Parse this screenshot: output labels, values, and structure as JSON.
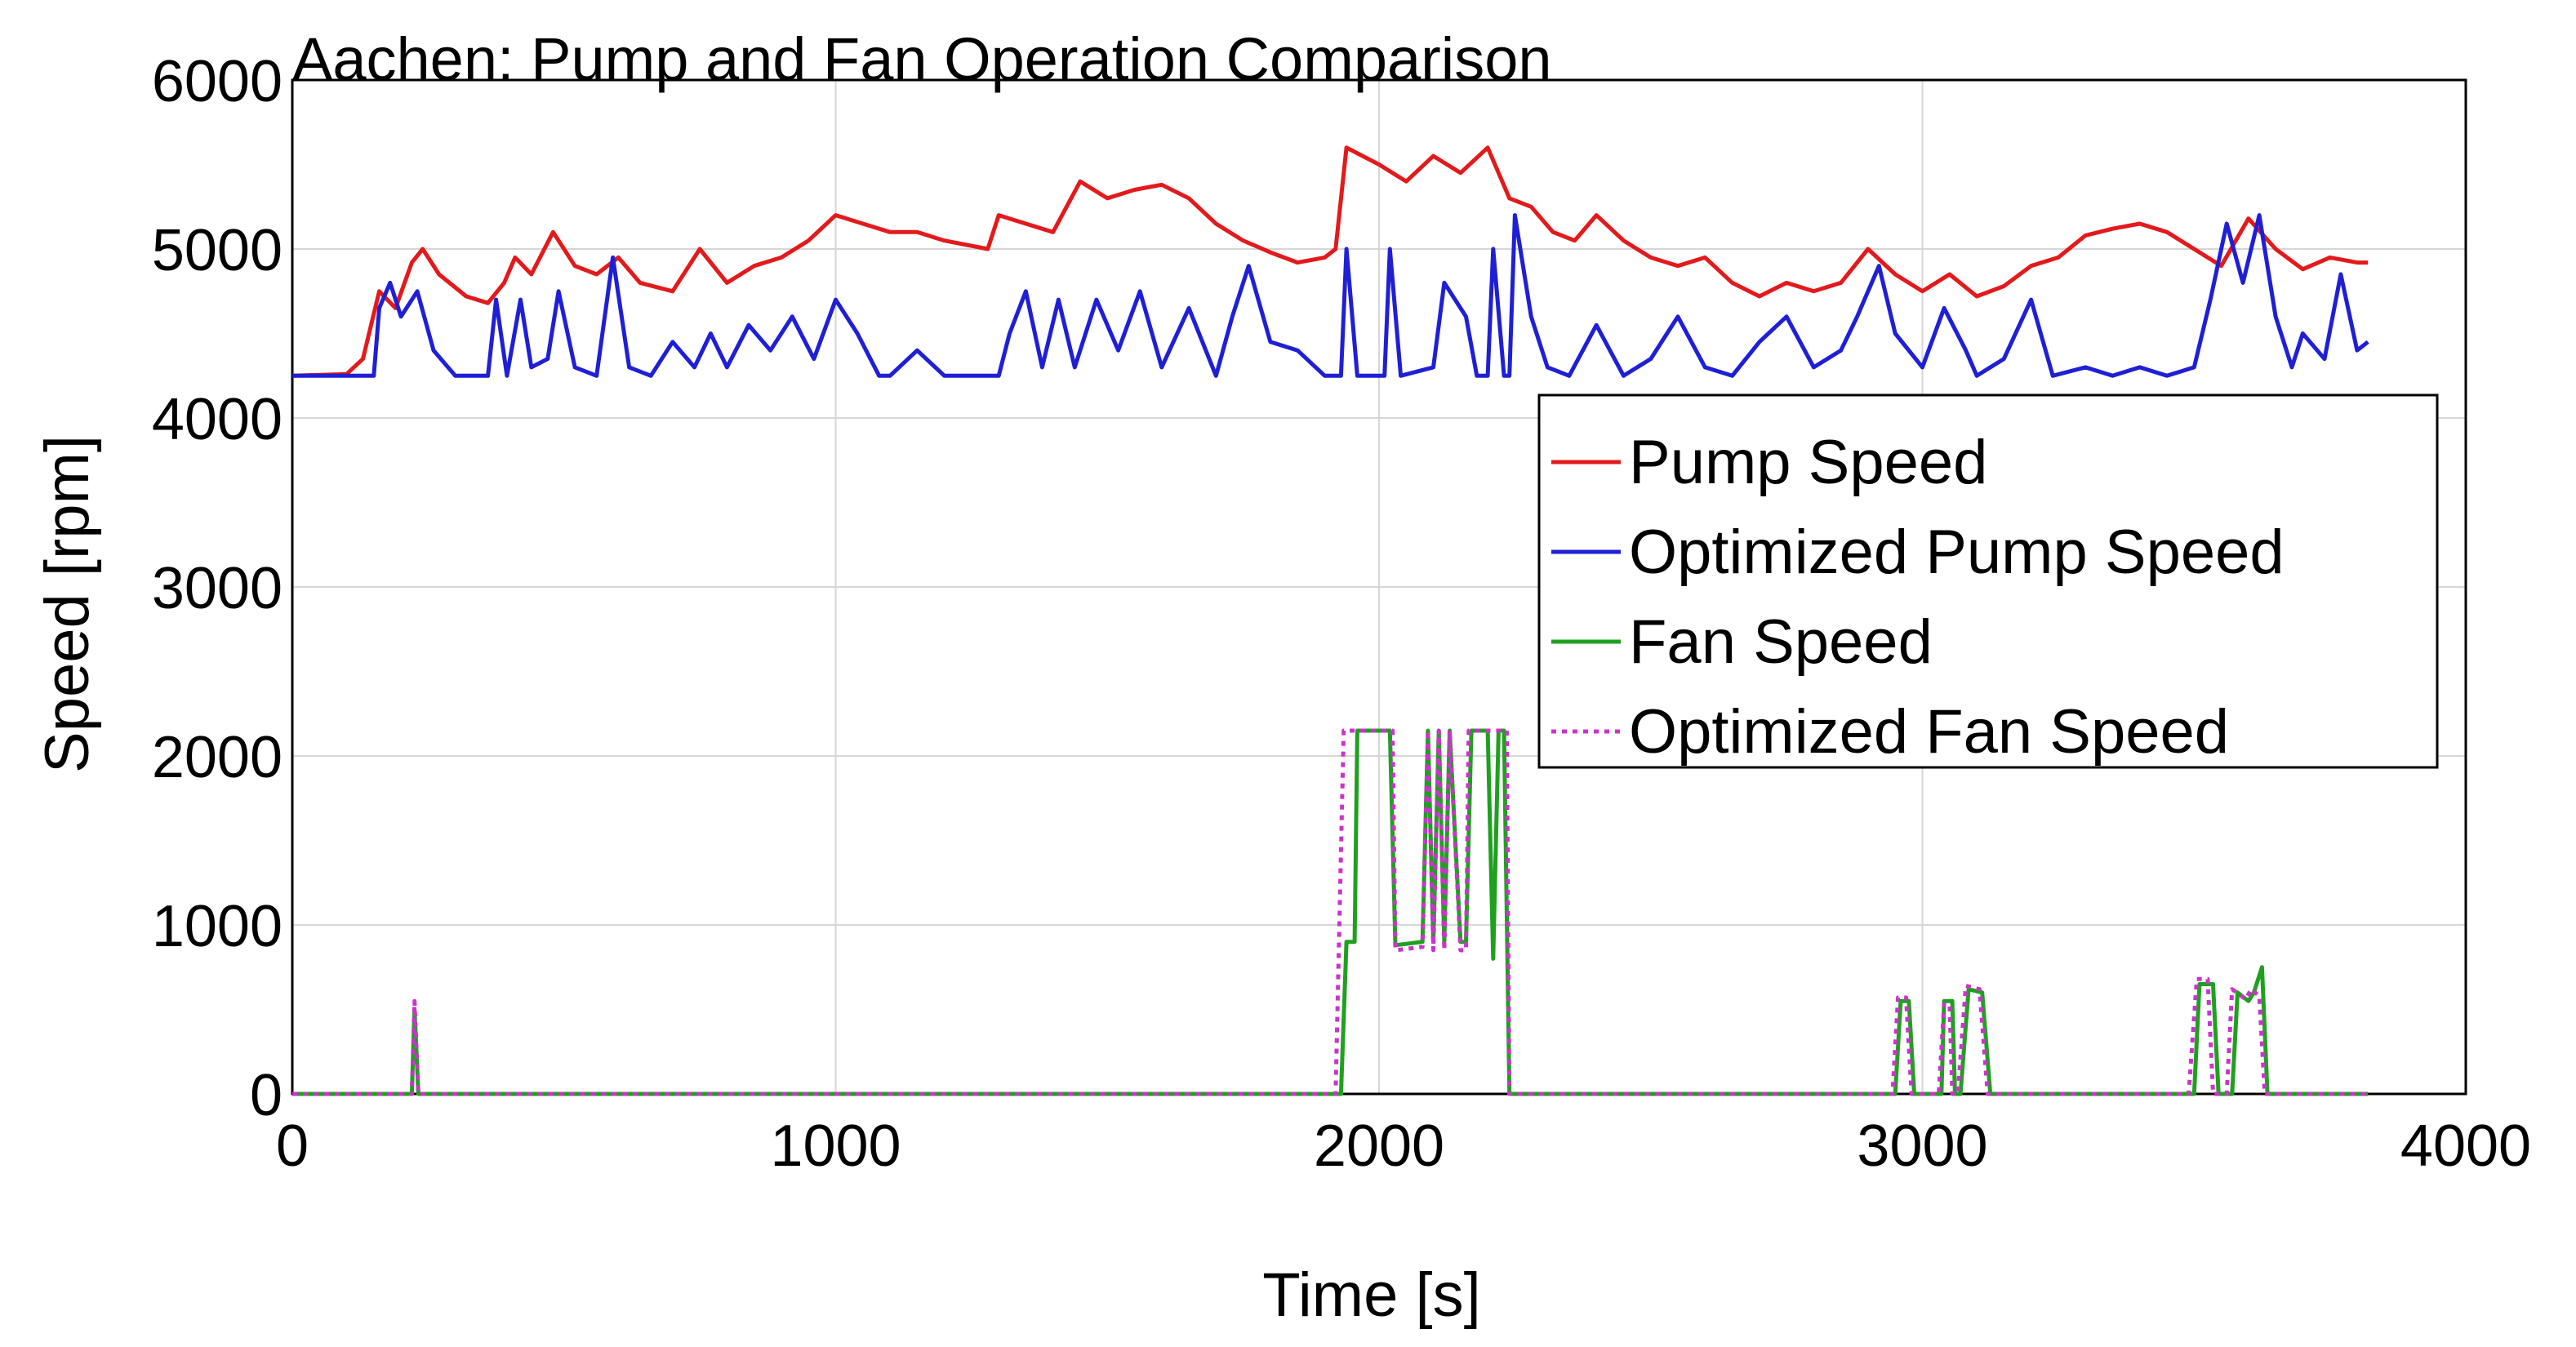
{
  "chart_data": {
    "type": "line",
    "title": "Aachen: Pump and Fan Operation Comparison",
    "xlabel": "Time [s]",
    "ylabel": "Speed [rpm]",
    "xlim": [
      0,
      4000
    ],
    "ylim": [
      0,
      6000
    ],
    "xticks": [
      0,
      1000,
      2000,
      3000,
      4000
    ],
    "yticks": [
      0,
      1000,
      2000,
      3000,
      4000,
      5000,
      6000
    ],
    "xtick_labels": [
      "0",
      "1000",
      "2000",
      "3000",
      "4000"
    ],
    "ytick_labels": [
      "0",
      "1000",
      "2000",
      "3000",
      "4000",
      "5000",
      "6000"
    ],
    "grid": true,
    "legend_position": "right-middle",
    "series": [
      {
        "name": "Pump Speed",
        "color": "#e31a1c",
        "style": "solid",
        "points": [
          [
            0,
            4250
          ],
          [
            100,
            4260
          ],
          [
            130,
            4350
          ],
          [
            160,
            4750
          ],
          [
            190,
            4650
          ],
          [
            220,
            4920
          ],
          [
            240,
            5000
          ],
          [
            270,
            4850
          ],
          [
            320,
            4720
          ],
          [
            360,
            4680
          ],
          [
            390,
            4800
          ],
          [
            410,
            4950
          ],
          [
            440,
            4850
          ],
          [
            480,
            5100
          ],
          [
            520,
            4900
          ],
          [
            560,
            4850
          ],
          [
            600,
            4950
          ],
          [
            640,
            4800
          ],
          [
            700,
            4750
          ],
          [
            750,
            5000
          ],
          [
            800,
            4800
          ],
          [
            850,
            4900
          ],
          [
            900,
            4950
          ],
          [
            950,
            5050
          ],
          [
            1000,
            5200
          ],
          [
            1050,
            5150
          ],
          [
            1100,
            5100
          ],
          [
            1150,
            5100
          ],
          [
            1200,
            5050
          ],
          [
            1280,
            5000
          ],
          [
            1300,
            5200
          ],
          [
            1350,
            5150
          ],
          [
            1400,
            5100
          ],
          [
            1450,
            5400
          ],
          [
            1500,
            5300
          ],
          [
            1550,
            5350
          ],
          [
            1600,
            5380
          ],
          [
            1650,
            5300
          ],
          [
            1700,
            5150
          ],
          [
            1750,
            5050
          ],
          [
            1800,
            4980
          ],
          [
            1850,
            4920
          ],
          [
            1900,
            4950
          ],
          [
            1920,
            5000
          ],
          [
            1940,
            5600
          ],
          [
            2000,
            5500
          ],
          [
            2050,
            5400
          ],
          [
            2100,
            5550
          ],
          [
            2150,
            5450
          ],
          [
            2200,
            5600
          ],
          [
            2240,
            5300
          ],
          [
            2280,
            5250
          ],
          [
            2320,
            5100
          ],
          [
            2360,
            5050
          ],
          [
            2400,
            5200
          ],
          [
            2450,
            5050
          ],
          [
            2500,
            4950
          ],
          [
            2550,
            4900
          ],
          [
            2600,
            4950
          ],
          [
            2650,
            4800
          ],
          [
            2700,
            4720
          ],
          [
            2750,
            4800
          ],
          [
            2800,
            4750
          ],
          [
            2850,
            4800
          ],
          [
            2900,
            5000
          ],
          [
            2950,
            4850
          ],
          [
            3000,
            4750
          ],
          [
            3050,
            4850
          ],
          [
            3100,
            4720
          ],
          [
            3150,
            4780
          ],
          [
            3200,
            4900
          ],
          [
            3250,
            4950
          ],
          [
            3300,
            5080
          ],
          [
            3350,
            5120
          ],
          [
            3400,
            5150
          ],
          [
            3450,
            5100
          ],
          [
            3500,
            5000
          ],
          [
            3550,
            4900
          ],
          [
            3600,
            5180
          ],
          [
            3650,
            5000
          ],
          [
            3700,
            4880
          ],
          [
            3750,
            4950
          ],
          [
            3800,
            4920
          ],
          [
            3820,
            4920
          ]
        ]
      },
      {
        "name": "Optimized Pump Speed",
        "color": "#1f1fd6",
        "style": "solid",
        "points": [
          [
            0,
            4250
          ],
          [
            150,
            4250
          ],
          [
            160,
            4650
          ],
          [
            180,
            4800
          ],
          [
            200,
            4600
          ],
          [
            230,
            4750
          ],
          [
            260,
            4400
          ],
          [
            300,
            4250
          ],
          [
            360,
            4250
          ],
          [
            375,
            4700
          ],
          [
            395,
            4250
          ],
          [
            420,
            4700
          ],
          [
            440,
            4300
          ],
          [
            470,
            4350
          ],
          [
            490,
            4750
          ],
          [
            520,
            4300
          ],
          [
            560,
            4250
          ],
          [
            590,
            4950
          ],
          [
            620,
            4300
          ],
          [
            660,
            4250
          ],
          [
            700,
            4450
          ],
          [
            740,
            4300
          ],
          [
            770,
            4500
          ],
          [
            800,
            4300
          ],
          [
            840,
            4550
          ],
          [
            880,
            4400
          ],
          [
            920,
            4600
          ],
          [
            960,
            4350
          ],
          [
            1000,
            4700
          ],
          [
            1040,
            4500
          ],
          [
            1080,
            4250
          ],
          [
            1100,
            4250
          ],
          [
            1150,
            4400
          ],
          [
            1200,
            4250
          ],
          [
            1300,
            4250
          ],
          [
            1320,
            4500
          ],
          [
            1350,
            4750
          ],
          [
            1380,
            4300
          ],
          [
            1410,
            4700
          ],
          [
            1440,
            4300
          ],
          [
            1480,
            4700
          ],
          [
            1520,
            4400
          ],
          [
            1560,
            4750
          ],
          [
            1600,
            4300
          ],
          [
            1650,
            4650
          ],
          [
            1700,
            4250
          ],
          [
            1730,
            4600
          ],
          [
            1760,
            4900
          ],
          [
            1800,
            4450
          ],
          [
            1850,
            4400
          ],
          [
            1900,
            4250
          ],
          [
            1930,
            4250
          ],
          [
            1940,
            5000
          ],
          [
            1960,
            4250
          ],
          [
            2010,
            4250
          ],
          [
            2020,
            5000
          ],
          [
            2040,
            4250
          ],
          [
            2100,
            4300
          ],
          [
            2120,
            4800
          ],
          [
            2160,
            4600
          ],
          [
            2180,
            4250
          ],
          [
            2200,
            4250
          ],
          [
            2210,
            5000
          ],
          [
            2230,
            4250
          ],
          [
            2240,
            4250
          ],
          [
            2250,
            5200
          ],
          [
            2280,
            4600
          ],
          [
            2310,
            4300
          ],
          [
            2350,
            4250
          ],
          [
            2400,
            4550
          ],
          [
            2450,
            4250
          ],
          [
            2500,
            4350
          ],
          [
            2550,
            4600
          ],
          [
            2600,
            4300
          ],
          [
            2650,
            4250
          ],
          [
            2700,
            4450
          ],
          [
            2750,
            4600
          ],
          [
            2800,
            4300
          ],
          [
            2850,
            4400
          ],
          [
            2880,
            4600
          ],
          [
            2920,
            4900
          ],
          [
            2950,
            4500
          ],
          [
            3000,
            4300
          ],
          [
            3040,
            4650
          ],
          [
            3080,
            4400
          ],
          [
            3100,
            4250
          ],
          [
            3150,
            4350
          ],
          [
            3200,
            4700
          ],
          [
            3240,
            4250
          ],
          [
            3300,
            4300
          ],
          [
            3350,
            4250
          ],
          [
            3400,
            4300
          ],
          [
            3450,
            4250
          ],
          [
            3500,
            4300
          ],
          [
            3530,
            4700
          ],
          [
            3560,
            5150
          ],
          [
            3590,
            4800
          ],
          [
            3620,
            5200
          ],
          [
            3650,
            4600
          ],
          [
            3680,
            4300
          ],
          [
            3700,
            4500
          ],
          [
            3740,
            4350
          ],
          [
            3770,
            4850
          ],
          [
            3800,
            4400
          ],
          [
            3820,
            4450
          ]
        ]
      },
      {
        "name": "Fan Speed",
        "color": "#1fa01f",
        "style": "solid",
        "points": [
          [
            0,
            0
          ],
          [
            220,
            0
          ],
          [
            225,
            500
          ],
          [
            232,
            0
          ],
          [
            1930,
            0
          ],
          [
            1940,
            900
          ],
          [
            1955,
            900
          ],
          [
            1960,
            2150
          ],
          [
            2020,
            2150
          ],
          [
            2030,
            880
          ],
          [
            2080,
            900
          ],
          [
            2090,
            2150
          ],
          [
            2100,
            900
          ],
          [
            2110,
            2150
          ],
          [
            2120,
            900
          ],
          [
            2130,
            2150
          ],
          [
            2150,
            900
          ],
          [
            2160,
            900
          ],
          [
            2170,
            2150
          ],
          [
            2200,
            2150
          ],
          [
            2210,
            800
          ],
          [
            2220,
            2150
          ],
          [
            2230,
            2150
          ],
          [
            2240,
            0
          ],
          [
            2950,
            0
          ],
          [
            2960,
            550
          ],
          [
            2975,
            550
          ],
          [
            2985,
            0
          ],
          [
            3035,
            0
          ],
          [
            3040,
            550
          ],
          [
            3055,
            550
          ],
          [
            3060,
            0
          ],
          [
            3070,
            0
          ],
          [
            3085,
            620
          ],
          [
            3110,
            600
          ],
          [
            3125,
            0
          ],
          [
            3500,
            0
          ],
          [
            3510,
            650
          ],
          [
            3535,
            650
          ],
          [
            3545,
            0
          ],
          [
            3570,
            0
          ],
          [
            3580,
            600
          ],
          [
            3600,
            550
          ],
          [
            3610,
            600
          ],
          [
            3625,
            750
          ],
          [
            3635,
            0
          ],
          [
            3820,
            0
          ]
        ]
      },
      {
        "name": "Optimized Fan Speed",
        "color": "#cc33cc",
        "style": "dotted",
        "points": [
          [
            0,
            0
          ],
          [
            220,
            0
          ],
          [
            225,
            550
          ],
          [
            232,
            0
          ],
          [
            1920,
            0
          ],
          [
            1935,
            2150
          ],
          [
            2025,
            2150
          ],
          [
            2030,
            850
          ],
          [
            2080,
            870
          ],
          [
            2090,
            2150
          ],
          [
            2100,
            850
          ],
          [
            2110,
            2150
          ],
          [
            2120,
            850
          ],
          [
            2130,
            2150
          ],
          [
            2150,
            850
          ],
          [
            2160,
            850
          ],
          [
            2165,
            2150
          ],
          [
            2235,
            2150
          ],
          [
            2240,
            0
          ],
          [
            2945,
            0
          ],
          [
            2955,
            570
          ],
          [
            2970,
            570
          ],
          [
            2980,
            0
          ],
          [
            3030,
            0
          ],
          [
            3040,
            530
          ],
          [
            3050,
            530
          ],
          [
            3055,
            0
          ],
          [
            3065,
            0
          ],
          [
            3080,
            640
          ],
          [
            3105,
            620
          ],
          [
            3120,
            0
          ],
          [
            3490,
            0
          ],
          [
            3505,
            680
          ],
          [
            3525,
            680
          ],
          [
            3535,
            0
          ],
          [
            3560,
            0
          ],
          [
            3570,
            620
          ],
          [
            3595,
            560
          ],
          [
            3605,
            620
          ],
          [
            3620,
            580
          ],
          [
            3630,
            0
          ],
          [
            3820,
            0
          ]
        ]
      }
    ]
  }
}
